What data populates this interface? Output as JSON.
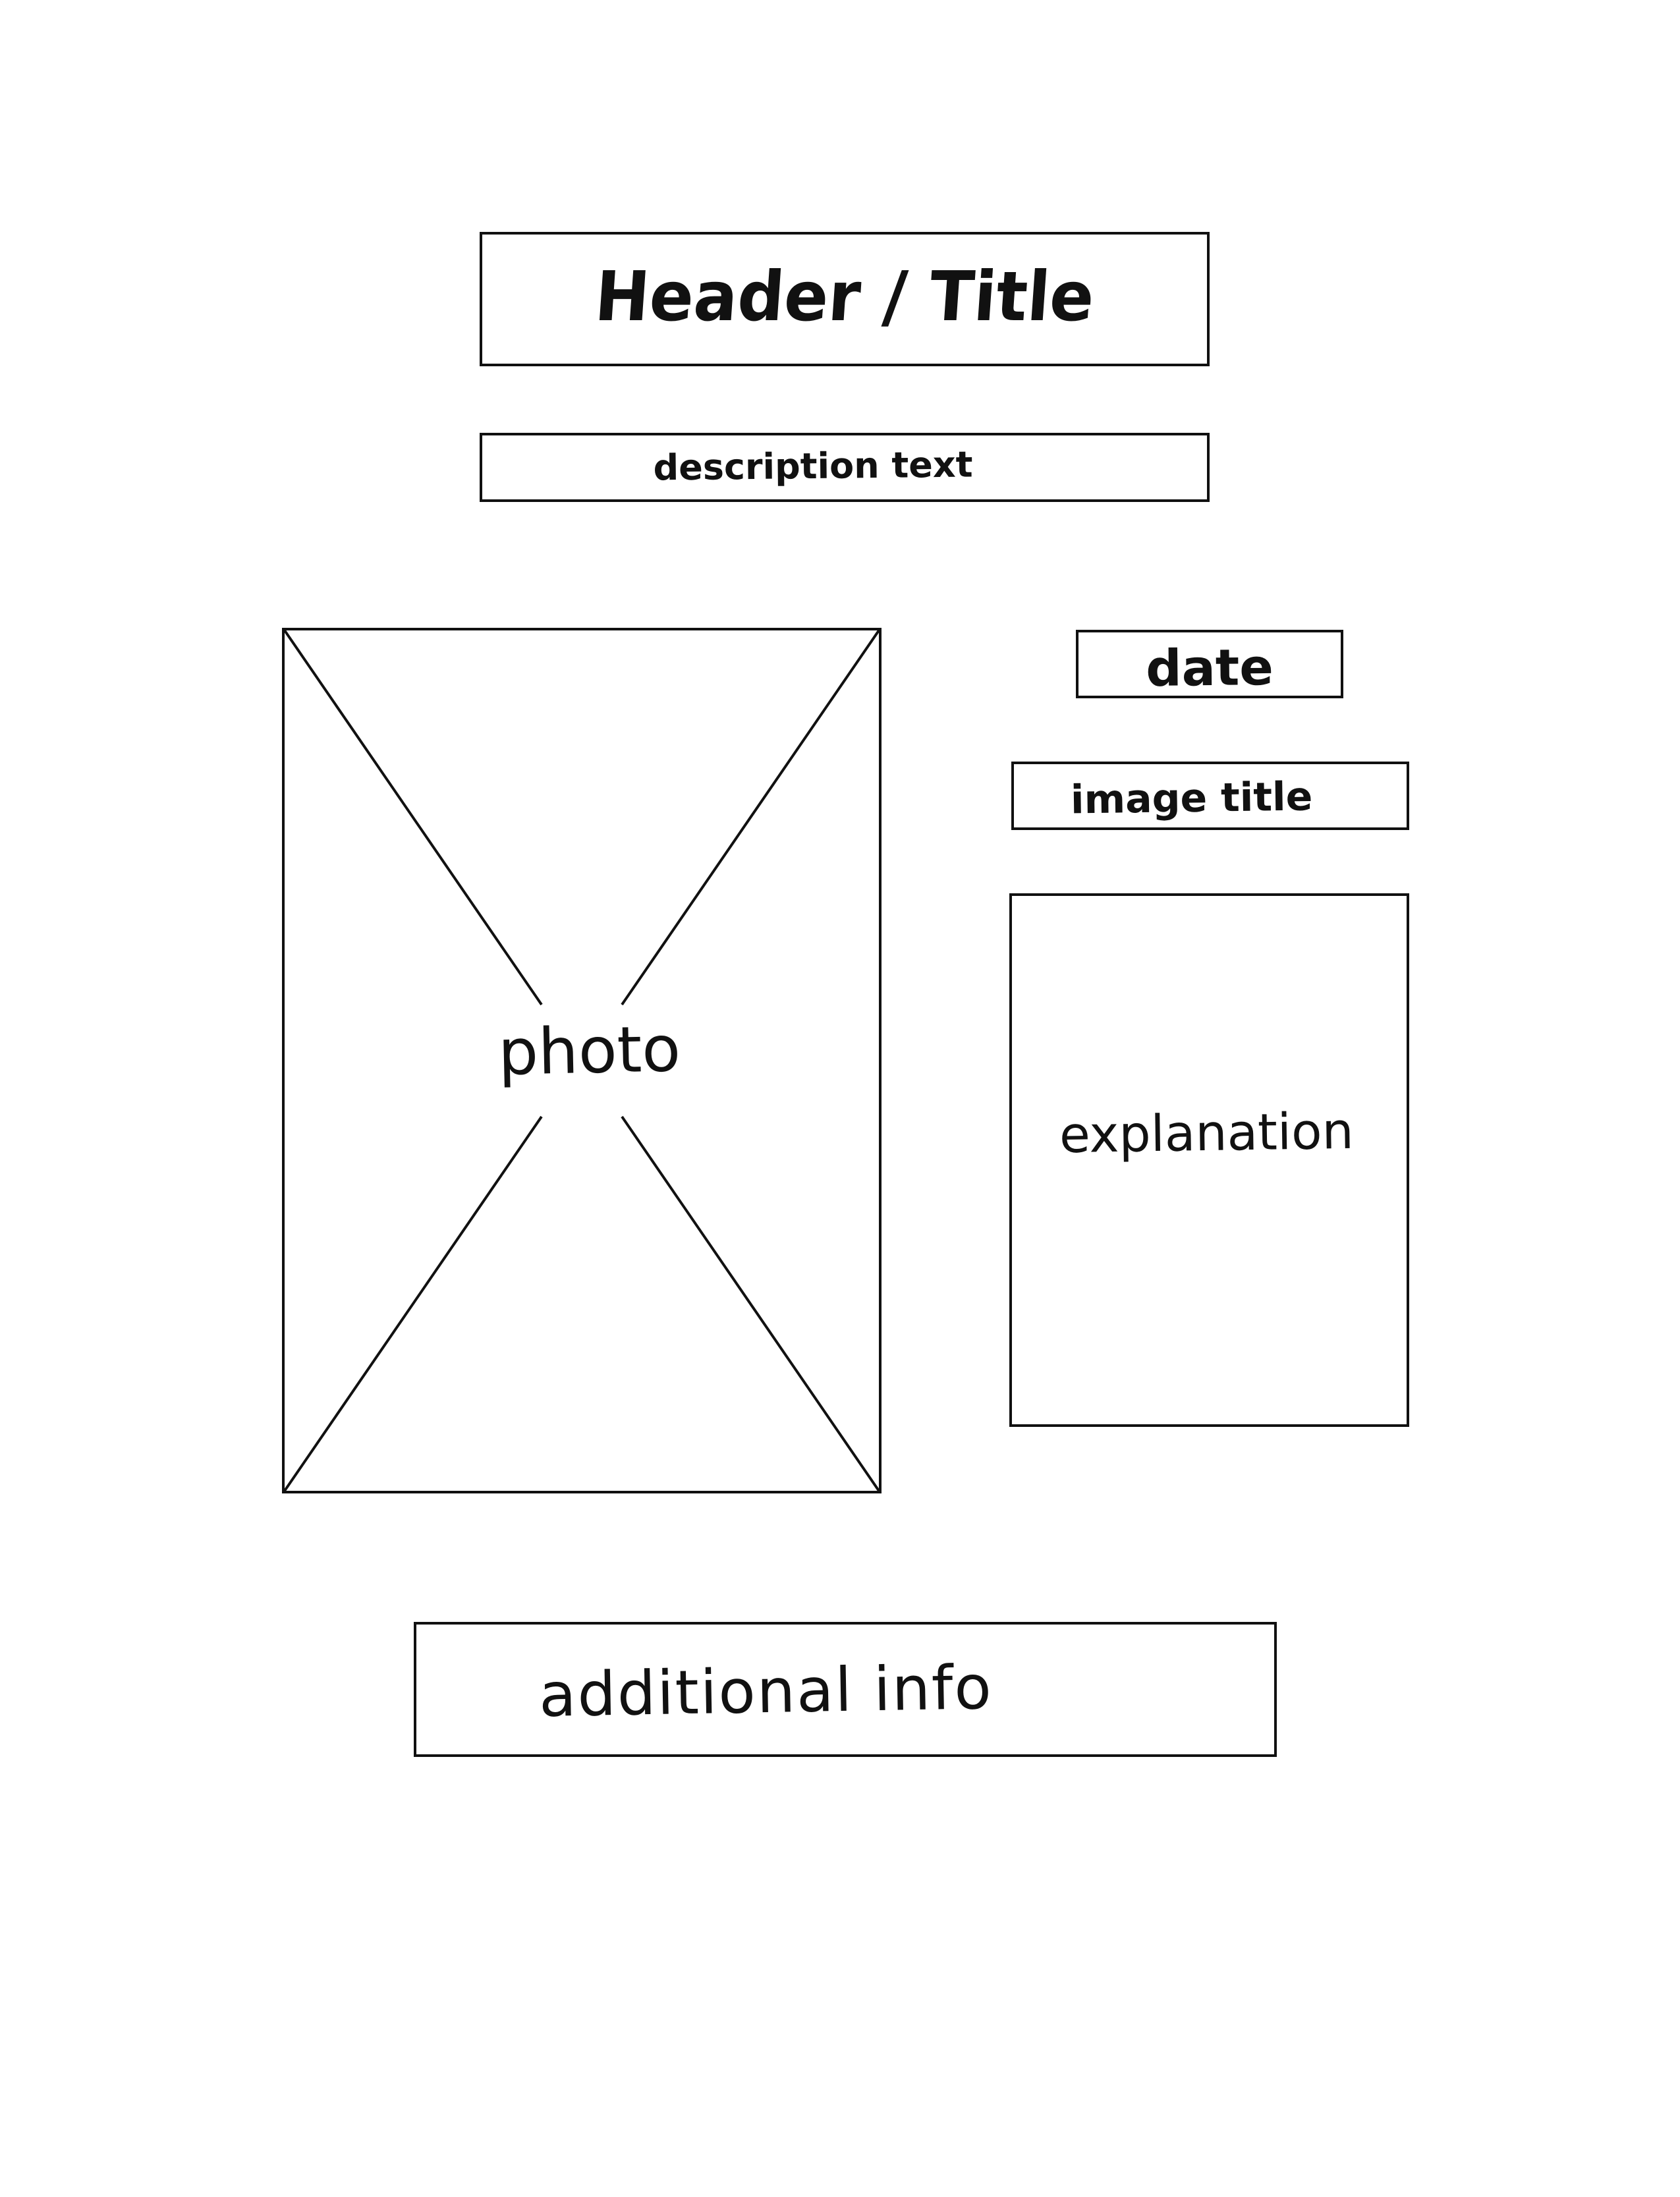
{
  "wireframe": {
    "header": {
      "label": "Header / Title"
    },
    "description": {
      "label": "description text"
    },
    "photo": {
      "label": "photo"
    },
    "date": {
      "label": "date"
    },
    "image_title": {
      "label": "image title"
    },
    "explanation": {
      "label": "explanation"
    },
    "additional_info": {
      "label": "additional info"
    }
  },
  "colors": {
    "ink": "#111111",
    "background": "#ffffff"
  }
}
